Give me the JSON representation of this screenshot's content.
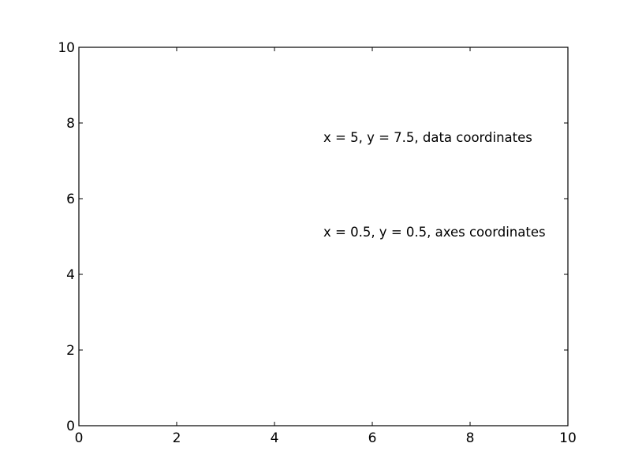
{
  "chart_data": {
    "type": "scatter",
    "title": "",
    "xlabel": "",
    "ylabel": "",
    "xlim": [
      0,
      10
    ],
    "ylim": [
      0,
      10
    ],
    "xticks": [
      0,
      2,
      4,
      6,
      8,
      10
    ],
    "yticks": [
      0,
      2,
      4,
      6,
      8,
      10
    ],
    "grid": false,
    "series": [],
    "annotations": [
      {
        "text": "x = 5, y = 7.5, data coordinates",
        "coords": "data",
        "x": 5,
        "y": 7.5
      },
      {
        "text": "x = 0.5, y = 0.5, axes coordinates",
        "coords": "axes",
        "x": 0.5,
        "y": 0.5
      }
    ]
  }
}
